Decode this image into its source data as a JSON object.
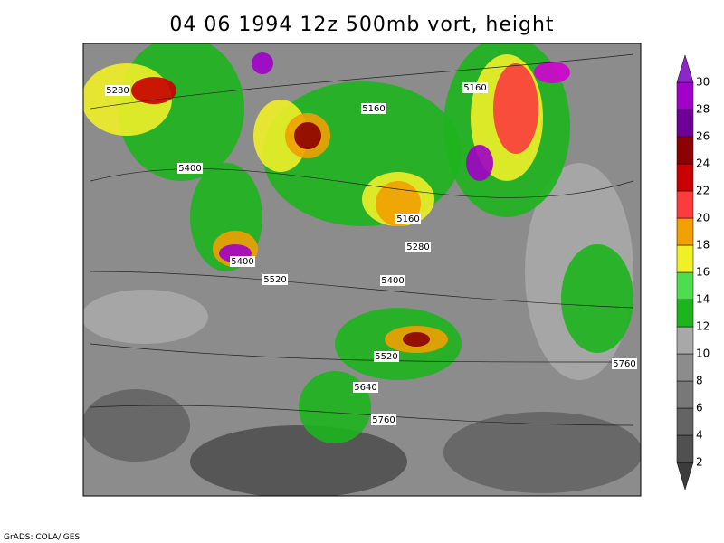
{
  "title": "04 06 1994 12z 500mb vort, height",
  "footer": "GrADS: COLA/IGES",
  "colorbar": {
    "levels": [
      2,
      4,
      6,
      8,
      10,
      12,
      14,
      16,
      18,
      20,
      22,
      24,
      26,
      28,
      30
    ],
    "colors": [
      "#3c3c3c",
      "#505050",
      "#646464",
      "#787878",
      "#8c8c8c",
      "#a8a8a8",
      "#1eb41e",
      "#50dc50",
      "#f0f028",
      "#f0a000",
      "#fa3c3c",
      "#c80000",
      "#8c0000",
      "#6e0096",
      "#a000c8",
      "#d200d2",
      "#8c28c8"
    ]
  },
  "contour_labels": [
    5280,
    5400,
    5160,
    5160,
    5160,
    5280,
    5400,
    5520,
    5400,
    5520,
    5640,
    5760,
    5760
  ]
}
